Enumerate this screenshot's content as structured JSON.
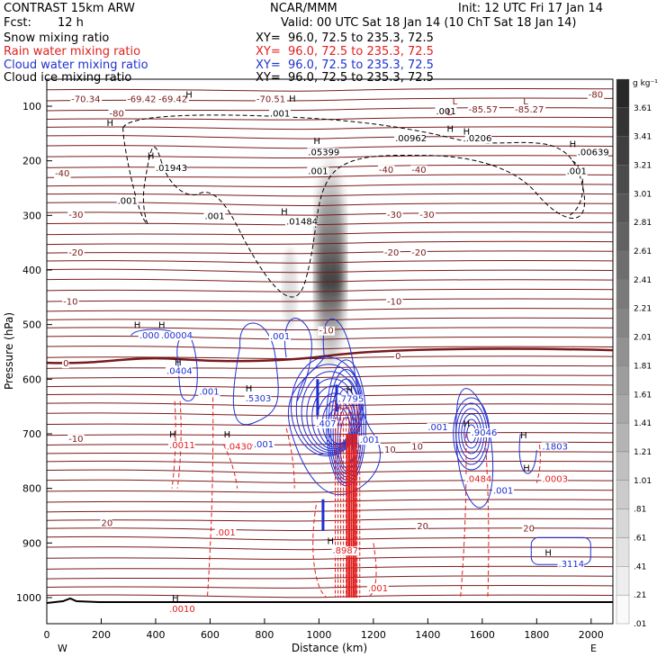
{
  "header": {
    "model": "CONTRAST 15km ARW",
    "org": "NCAR/MMM",
    "init": "Init: 12 UTC Fri 17 Jan 14",
    "fcst_label": "Fcst:",
    "fcst_value": "12 h",
    "valid": "Valid: 00 UTC Sat 18 Jan 14 (10 ChT Sat 18 Jan 14)"
  },
  "fields": [
    {
      "name": "Snow mixing ratio",
      "xy": "XY=  96.0, 72.5 to 235.3, 72.5",
      "color": "#000000"
    },
    {
      "name": "Rain water mixing ratio",
      "xy": "XY=  96.0, 72.5 to 235.3, 72.5",
      "color": "#e02020"
    },
    {
      "name": "Cloud water mixing ratio",
      "xy": "XY=  96.0, 72.5 to 235.3, 72.5",
      "color": "#2030d0"
    },
    {
      "name": "Cloud ice mixing ratio",
      "xy": "XY=  96.0, 72.5 to 235.3, 72.5",
      "color": "#000000"
    }
  ],
  "chart_data": {
    "type": "contour",
    "xlabel": "Distance (km)",
    "ylabel": "Pressure (hPa)",
    "xlim": [
      0,
      2080
    ],
    "ylim": [
      1030,
      50
    ],
    "x_ticks": [
      0,
      200,
      400,
      600,
      800,
      1000,
      1200,
      1400,
      1600,
      1800,
      2000
    ],
    "y_ticks": [
      100,
      200,
      300,
      400,
      500,
      600,
      700,
      800,
      900,
      1000
    ],
    "x_end_labels": {
      "left": "W",
      "right": "E"
    },
    "colorbar": {
      "unit": "g kg⁻¹",
      "labels": [
        "3.61",
        "3.41",
        "3.21",
        "3.01",
        "2.81",
        "2.61",
        "2.41",
        "2.21",
        "2.01",
        "1.81",
        "1.61",
        "1.41",
        "1.21",
        "1.01",
        ".81",
        ".61",
        ".41",
        ".21",
        ".01"
      ]
    },
    "temperature_isotherms": [
      {
        "label": "-80",
        "x": 230,
        "p": 112
      },
      {
        "label": "-80",
        "x": 1990,
        "p": 78
      },
      {
        "label": "-40",
        "x": 30,
        "p": 222
      },
      {
        "label": "-40",
        "x": 1220,
        "p": 215
      },
      {
        "label": "-40",
        "x": 1340,
        "p": 215
      },
      {
        "label": "-30",
        "x": 80,
        "p": 298
      },
      {
        "label": "-30",
        "x": 1250,
        "p": 298
      },
      {
        "label": "-30",
        "x": 1370,
        "p": 298
      },
      {
        "label": "-20",
        "x": 80,
        "p": 367
      },
      {
        "label": "-20",
        "x": 1240,
        "p": 367
      },
      {
        "label": "-20",
        "x": 1340,
        "p": 367
      },
      {
        "label": "-10",
        "x": 60,
        "p": 457
      },
      {
        "label": "-10",
        "x": 1250,
        "p": 457
      },
      {
        "label": "-10",
        "x": 1000,
        "p": 510
      },
      {
        "label": "0",
        "x": 60,
        "p": 570
      },
      {
        "label": "0",
        "x": 1280,
        "p": 557
      },
      {
        "label": "-10",
        "x": 80,
        "p": 708
      },
      {
        "label": "10",
        "x": 1240,
        "p": 728
      },
      {
        "label": "10",
        "x": 1340,
        "p": 722
      },
      {
        "label": "20",
        "x": 200,
        "p": 862
      },
      {
        "label": "20",
        "x": 1360,
        "p": 868
      },
      {
        "label": "20",
        "x": 1750,
        "p": 872
      }
    ],
    "min_labels_top": [
      "-70.34",
      "-69.42",
      "-69.42",
      "-70.51",
      "-85.57",
      "-85.27"
    ],
    "ice_labels": [
      {
        "text": ".001",
        "x": 820,
        "p": 112
      },
      {
        "text": ".001",
        "x": 1430,
        "p": 108
      },
      {
        "text": ".00962",
        "x": 1280,
        "p": 158
      },
      {
        "text": ".0206",
        "x": 1540,
        "p": 158
      },
      {
        "text": ".00639",
        "x": 1950,
        "p": 183
      },
      {
        "text": ".05399",
        "x": 960,
        "p": 183
      },
      {
        "text": ".01943",
        "x": 400,
        "p": 212
      },
      {
        "text": ".001",
        "x": 960,
        "p": 218
      },
      {
        "text": ".001",
        "x": 1910,
        "p": 218
      },
      {
        "text": ".001",
        "x": 260,
        "p": 272
      },
      {
        "text": ".001",
        "x": 580,
        "p": 300
      },
      {
        "text": ".01484",
        "x": 880,
        "p": 310
      }
    ],
    "cloud_water_labels": [
      {
        "text": ".0001",
        "x": 340,
        "p": 519
      },
      {
        "text": ".00004",
        "x": 420,
        "p": 519
      },
      {
        "text": ".0404",
        "x": 440,
        "p": 584
      },
      {
        "text": ".001",
        "x": 560,
        "p": 622
      },
      {
        "text": ".5303",
        "x": 730,
        "p": 634
      },
      {
        "text": ".001",
        "x": 820,
        "p": 520
      },
      {
        "text": ".407",
        "x": 990,
        "p": 680
      },
      {
        "text": ".7795",
        "x": 1070,
        "p": 635
      },
      {
        "text": ".001",
        "x": 1150,
        "p": 710
      },
      {
        "text": ".001",
        "x": 1400,
        "p": 687
      },
      {
        "text": ".9046",
        "x": 1560,
        "p": 697
      },
      {
        "text": ".1803",
        "x": 1820,
        "p": 722
      },
      {
        "text": ".001",
        "x": 1640,
        "p": 803
      },
      {
        "text": ".001",
        "x": 760,
        "p": 718
      },
      {
        "text": ".3114",
        "x": 1880,
        "p": 937
      }
    ],
    "rain_labels": [
      {
        "text": ".0011",
        "x": 450,
        "p": 720
      },
      {
        "text": ".0430",
        "x": 660,
        "p": 722
      },
      {
        "text": ".0484",
        "x": 1540,
        "p": 782
      },
      {
        "text": ".0003",
        "x": 1820,
        "p": 782
      },
      {
        "text": ".001",
        "x": 620,
        "p": 880
      },
      {
        "text": ".8987",
        "x": 1050,
        "p": 913
      },
      {
        "text": ".001",
        "x": 1180,
        "p": 982
      },
      {
        "text": ".0010",
        "x": 450,
        "p": 1020
      }
    ],
    "h_markers": [
      {
        "x": 220,
        "p": 130
      },
      {
        "x": 510,
        "p": 78
      },
      {
        "x": 890,
        "p": 85
      },
      {
        "x": 980,
        "p": 163
      },
      {
        "x": 1470,
        "p": 140
      },
      {
        "x": 1530,
        "p": 145
      },
      {
        "x": 1920,
        "p": 168
      },
      {
        "x": 370,
        "p": 190
      },
      {
        "x": 860,
        "p": 292
      },
      {
        "x": 320,
        "p": 500
      },
      {
        "x": 410,
        "p": 500
      },
      {
        "x": 470,
        "p": 568
      },
      {
        "x": 730,
        "p": 616
      },
      {
        "x": 1100,
        "p": 618
      },
      {
        "x": 1530,
        "p": 680
      },
      {
        "x": 1740,
        "p": 702
      },
      {
        "x": 450,
        "p": 700
      },
      {
        "x": 650,
        "p": 700
      },
      {
        "x": 1750,
        "p": 762
      },
      {
        "x": 1030,
        "p": 895
      },
      {
        "x": 460,
        "p": 1000
      },
      {
        "x": 1830,
        "p": 917
      }
    ],
    "l_markers": [
      {
        "x": 1490,
        "p": 90
      },
      {
        "x": 1750,
        "p": 90
      },
      {
        "x": 1470,
        "p": 110
      }
    ]
  }
}
